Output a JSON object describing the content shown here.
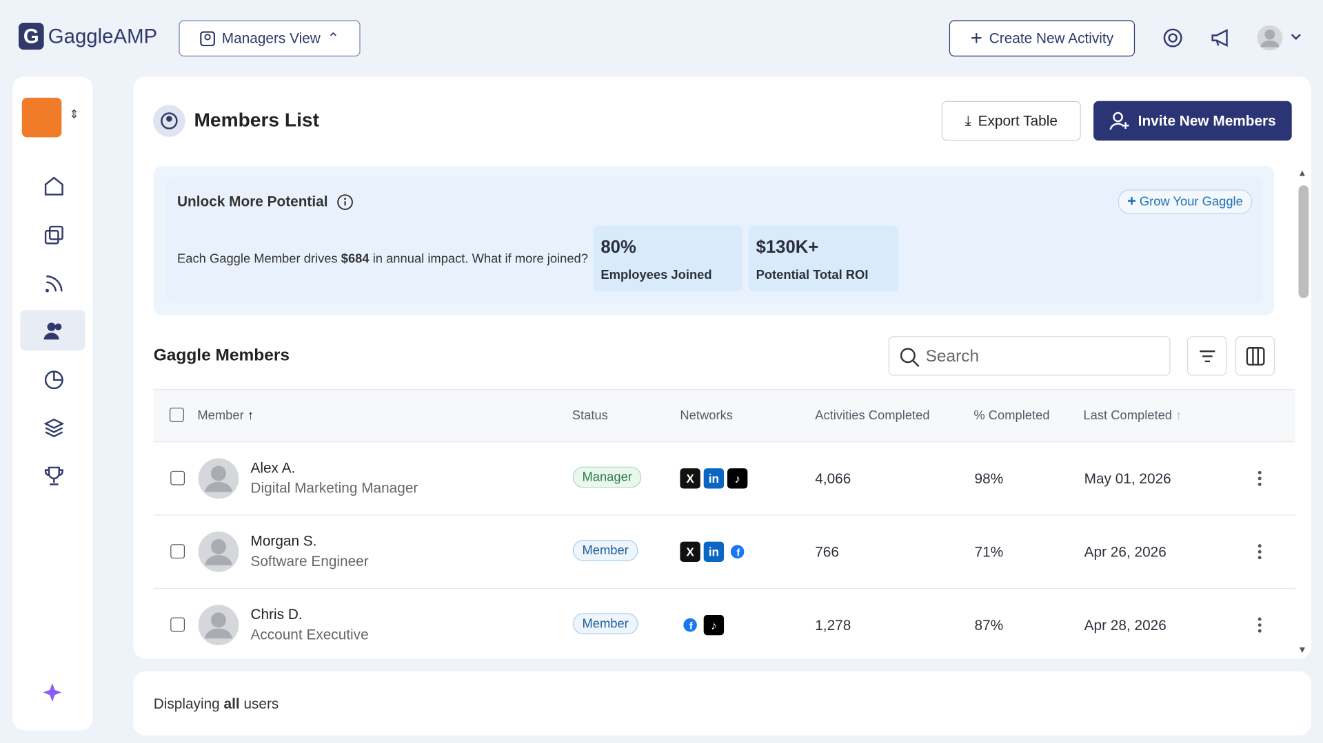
{
  "header": {
    "logo": "GaggleAMP",
    "view_switch": "Managers View",
    "create_button": "Create New Activity"
  },
  "page": {
    "title": "Members List",
    "export_button": "Export Table",
    "invite_button": "Invite New Members"
  },
  "banner": {
    "title": "Unlock More Potential",
    "grow_button": "Grow Your Gaggle",
    "text_before": "Each Gaggle Member drives",
    "text_bold": "$684",
    "text_after": "in annual impact. What if more joined?",
    "stats": [
      {
        "value": "80%",
        "label": "Employees Joined"
      },
      {
        "value": "$130K+",
        "label": "Potential Total ROI"
      }
    ]
  },
  "table": {
    "title": "Gaggle Members",
    "search_placeholder": "Search",
    "columns": [
      "Member",
      "Status",
      "Networks",
      "Activities Completed",
      "% Completed",
      "Last Completed"
    ],
    "rows": [
      {
        "name": "Alex A.",
        "role": "Digital Marketing Manager",
        "status": "Manager",
        "activities": "4,066",
        "completed": "98%",
        "last": "May 01, 2026"
      },
      {
        "name": "Morgan S.",
        "role": "Software Engineer",
        "status": "Member",
        "activities": "766",
        "completed": "71%",
        "last": "Apr 26, 2026"
      },
      {
        "name": "Chris D.",
        "role": "Account Executive",
        "status": "Member",
        "activities": "1,278",
        "completed": "87%",
        "last": "Apr 28, 2026"
      }
    ]
  },
  "footer": {
    "text_before": "Displaying",
    "text_bold": "all",
    "text_after": "users"
  }
}
